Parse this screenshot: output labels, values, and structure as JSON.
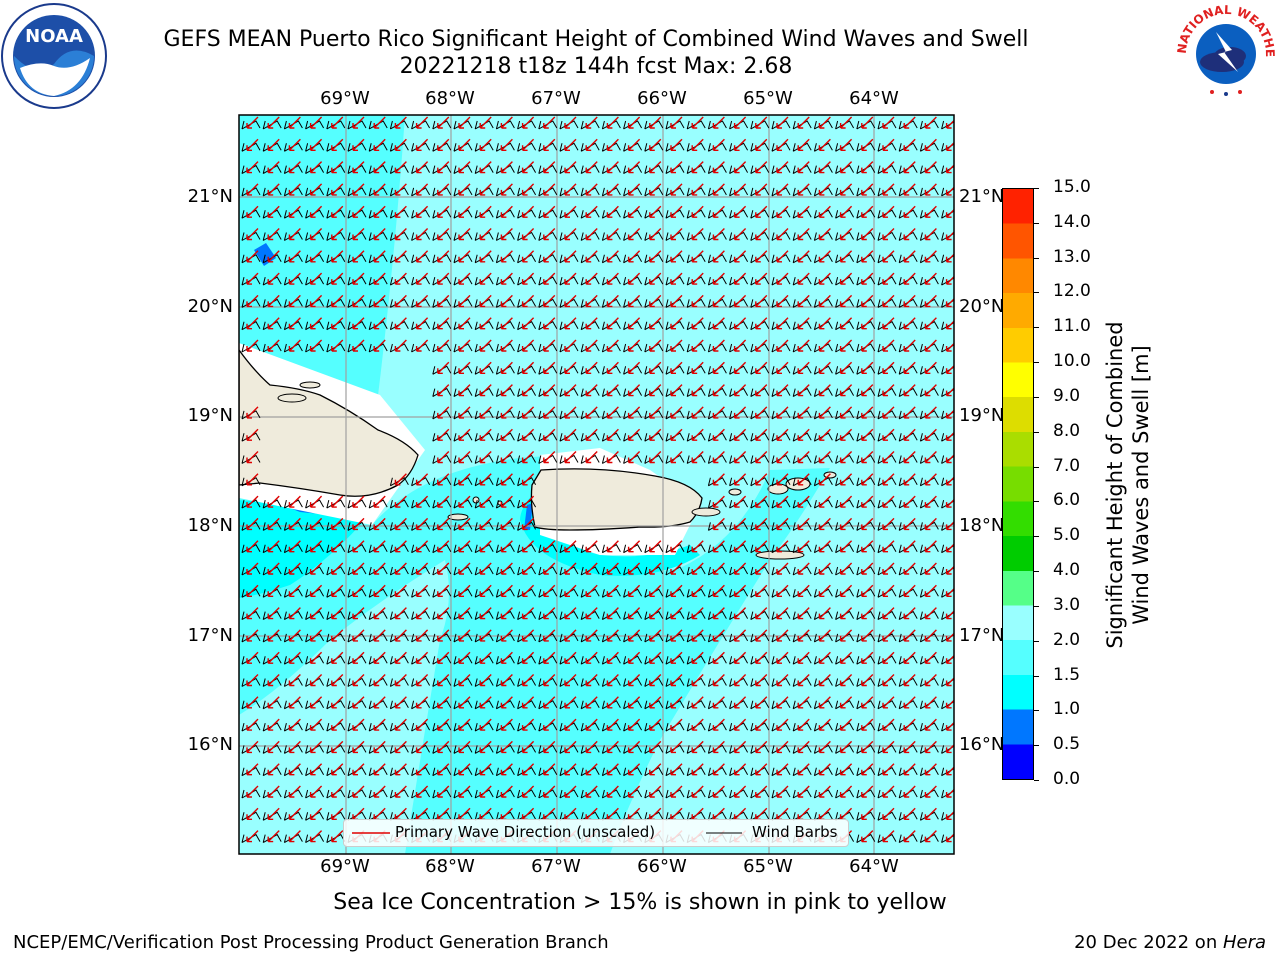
{
  "header": {
    "title_line1": "GEFS MEAN Puerto Rico Significant Height of Combined Wind Waves and Swell",
    "title_line2": "20221218 t18z 144h fcst   Max: 2.68"
  },
  "logos": {
    "left": "NOAA",
    "right_ring_text": "NATIONAL WEATHER SERVICE"
  },
  "axes": {
    "lon_labels": [
      "69°W",
      "68°W",
      "67°W",
      "66°W",
      "65°W",
      "64°W"
    ],
    "lat_labels": [
      "21°N",
      "20°N",
      "19°N",
      "18°N",
      "17°N",
      "16°N"
    ]
  },
  "legend": {
    "primary_wave": "Primary Wave Direction (unscaled)",
    "wind_barbs": "Wind Barbs",
    "primary_wave_color": "#e00000",
    "wind_barb_color": "#000000"
  },
  "colorbar": {
    "label_line1": "Significant Height of Combined",
    "label_line2": "Wind Waves and Swell [m]",
    "ticks": [
      "15.0",
      "14.0",
      "13.0",
      "12.0",
      "11.0",
      "10.0",
      "9.0",
      "8.0",
      "7.0",
      "6.0",
      "5.0",
      "4.0",
      "3.0",
      "2.0",
      "1.5",
      "1.0",
      "0.5",
      "0.0"
    ],
    "colors_bottom_to_top": [
      "#0000ff",
      "#0077ff",
      "#00ffff",
      "#55ffff",
      "#99ffff",
      "#55ff88",
      "#00cc00",
      "#33dd00",
      "#77dd00",
      "#aadd00",
      "#dddd00",
      "#ffff00",
      "#ffcc00",
      "#ffaa00",
      "#ff8800",
      "#ff5500",
      "#ff2200",
      "#ff0000"
    ]
  },
  "footnote": "Sea Ice Concentration > 15% is shown in pink to yellow",
  "credits": {
    "left": "NCEP/EMC/Verification Post Processing Product Generation Branch",
    "right_date": "20 Dec 2022 on ",
    "right_host": "Hera"
  }
}
